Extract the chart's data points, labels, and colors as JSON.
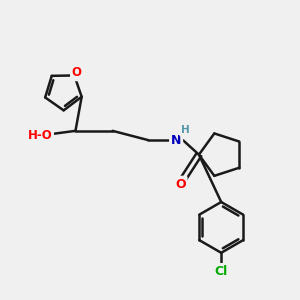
{
  "background_color": "#f0f0f0",
  "atom_colors": {
    "O": "#ff0000",
    "N": "#0000bb",
    "Cl": "#00aa00",
    "H": "#5599aa",
    "C": "#000000"
  },
  "bond_color": "#1a1a1a",
  "bond_width": 1.8,
  "figsize": [
    3.0,
    3.0
  ],
  "dpi": 100
}
